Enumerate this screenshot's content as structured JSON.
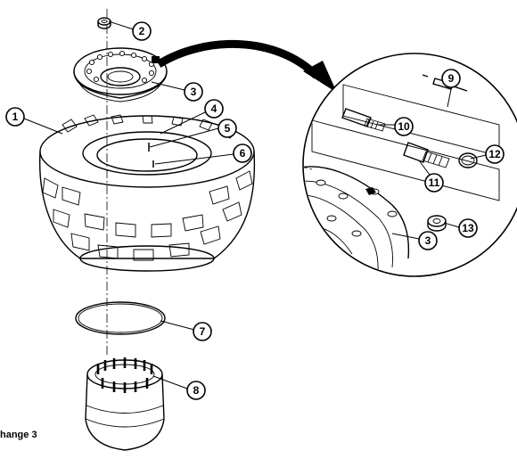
{
  "footer": {
    "text": "hange 3"
  },
  "callouts": [
    {
      "label": "1"
    },
    {
      "label": "2"
    },
    {
      "label": "3"
    },
    {
      "label": "4"
    },
    {
      "label": "5"
    },
    {
      "label": "6"
    },
    {
      "label": "7"
    },
    {
      "label": "8"
    },
    {
      "label": "9"
    },
    {
      "label": "10"
    },
    {
      "label": "11"
    },
    {
      "label": "12"
    },
    {
      "label": "13"
    },
    {
      "label": "3"
    }
  ]
}
